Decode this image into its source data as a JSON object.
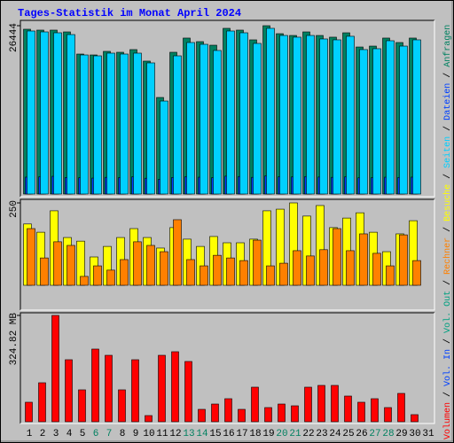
{
  "title": "Tages-Statistik im Monat April 2024",
  "legend_separator": "/",
  "chart_data": [
    {
      "type": "bar",
      "ylim": [
        0,
        26444
      ],
      "yticks": [
        26444
      ],
      "series": [
        {
          "name": "Anfragen",
          "color": "#008060",
          "values": [
            25890,
            25750,
            25750,
            25470,
            21990,
            21850,
            22410,
            22270,
            22690,
            20880,
            15170,
            22270,
            24500,
            23940,
            23380,
            26030,
            25750,
            24220,
            26444,
            25190,
            24910,
            25470,
            24910,
            24640,
            25330,
            23100,
            23240,
            24500,
            23800,
            24500,
            null
          ]
        },
        {
          "name": "Dateien",
          "color": "#0040ff",
          "values": [
            2650,
            2700,
            2780,
            2600,
            2550,
            2500,
            2620,
            2580,
            2700,
            2480,
            2300,
            2600,
            2720,
            2640,
            2560,
            2800,
            2750,
            2620,
            2850,
            2700,
            2680,
            2740,
            2660,
            2620,
            2700,
            2540,
            2560,
            2640,
            2600,
            2650,
            null
          ]
        },
        {
          "name": "Seiten",
          "color": "#00d0ff",
          "values": [
            25610,
            25470,
            25330,
            25050,
            21850,
            21710,
            22130,
            21990,
            22130,
            20600,
            14610,
            21710,
            23800,
            23520,
            22550,
            25610,
            25330,
            23660,
            26030,
            24910,
            24640,
            24910,
            24360,
            24220,
            24780,
            22690,
            22830,
            24080,
            23240,
            24220,
            null
          ]
        }
      ]
    },
    {
      "type": "bar",
      "ylim": [
        0,
        250
      ],
      "yticks": [
        250
      ],
      "series": [
        {
          "name": "Besuche",
          "color": "#ffff00",
          "values": [
            186,
            161,
            226,
            145,
            134,
            86,
            118,
            145,
            172,
            145,
            113,
            175,
            140,
            118,
            148,
            129,
            129,
            140,
            226,
            231,
            250,
            210,
            242,
            175,
            204,
            220,
            161,
            102,
            156,
            196,
            null
          ]
        },
        {
          "name": "Rechner",
          "color": "#ff8000",
          "values": [
            172,
            83,
            132,
            121,
            27,
            59,
            46,
            78,
            132,
            121,
            102,
            199,
            78,
            59,
            91,
            83,
            75,
            137,
            59,
            67,
            105,
            89,
            108,
            172,
            105,
            156,
            97,
            59,
            153,
            75,
            null
          ]
        }
      ]
    },
    {
      "type": "bar",
      "ylim": [
        0,
        324.82
      ],
      "yticks": [
        {
          "value": 324.82,
          "label": "324.82 MB"
        }
      ],
      "categories": [
        "1",
        "2",
        "3",
        "4",
        "5",
        "6",
        "7",
        "8",
        "9",
        "10",
        "11",
        "12",
        "13",
        "14",
        "15",
        "16",
        "17",
        "18",
        "19",
        "20",
        "21",
        "22",
        "23",
        "24",
        "25",
        "26",
        "27",
        "28",
        "29",
        "30",
        "31"
      ],
      "category_colors": [
        "#000000",
        "#000000",
        "#000000",
        "#000000",
        "#000000",
        "#008060",
        "#008060",
        "#000000",
        "#000000",
        "#000000",
        "#000000",
        "#000000",
        "#008060",
        "#008060",
        "#000000",
        "#000000",
        "#000000",
        "#000000",
        "#000000",
        "#008060",
        "#008060",
        "#000000",
        "#000000",
        "#000000",
        "#000000",
        "#000000",
        "#008060",
        "#008060",
        "#000000",
        "#000000",
        "#000000"
      ],
      "series": [
        {
          "name": "Vol. Out",
          "color": "#00a080"
        },
        {
          "name": "Vol. In",
          "color": "#0040ff"
        },
        {
          "name": "Volumen",
          "color": "#ff0000",
          "values": [
            59.6,
            119.1,
            324.82,
            189.5,
            97.5,
            222.0,
            203.0,
            97.5,
            189.5,
            18.9,
            203.0,
            213.9,
            184.1,
            37.9,
            54.1,
            70.4,
            37.9,
            105.6,
            43.3,
            54.1,
            48.7,
            105.6,
            111.0,
            111.0,
            78.5,
            59.6,
            70.4,
            43.3,
            86.6,
            21.7,
            null
          ]
        }
      ]
    }
  ]
}
